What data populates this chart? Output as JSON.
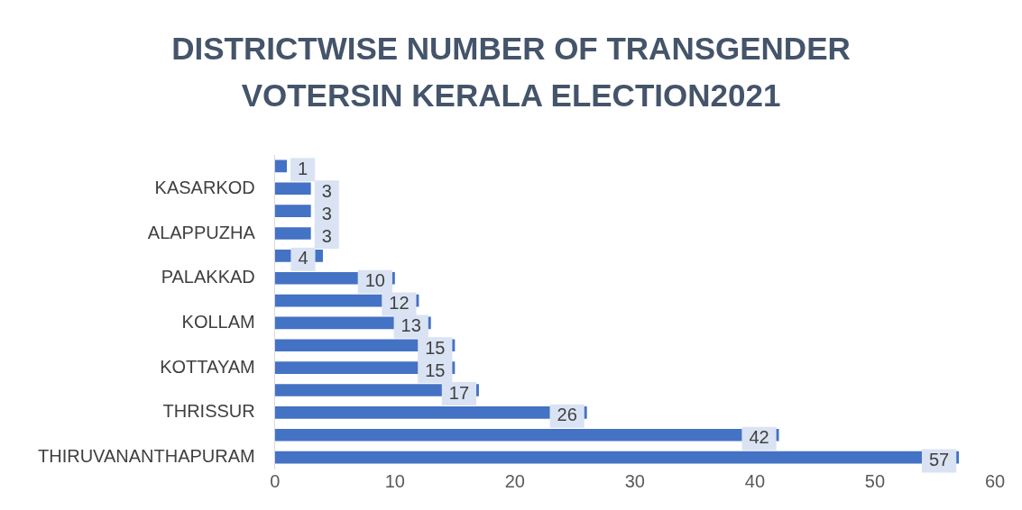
{
  "chart_data": {
    "type": "bar",
    "orientation": "horizontal",
    "title": "DISTRICTWISE NUMBER OF TRANSGENDER VOTERSIN KERALA ELECTION2021",
    "categories": [
      null,
      "KASARKOD",
      null,
      "ALAPPUZHA",
      null,
      "PALAKKAD",
      null,
      "KOLLAM",
      null,
      "KOTTAYAM",
      null,
      "THRISSUR",
      null,
      "THIRUVANANTHAPURAM"
    ],
    "values": [
      1,
      3,
      3,
      3,
      4,
      10,
      12,
      13,
      15,
      15,
      17,
      26,
      42,
      57
    ],
    "color": "#4472c4",
    "xlim": [
      0,
      60
    ],
    "xticks": [
      0,
      10,
      20,
      30,
      40,
      50,
      60
    ],
    "grid": false,
    "legend": false,
    "data_labels": true
  }
}
